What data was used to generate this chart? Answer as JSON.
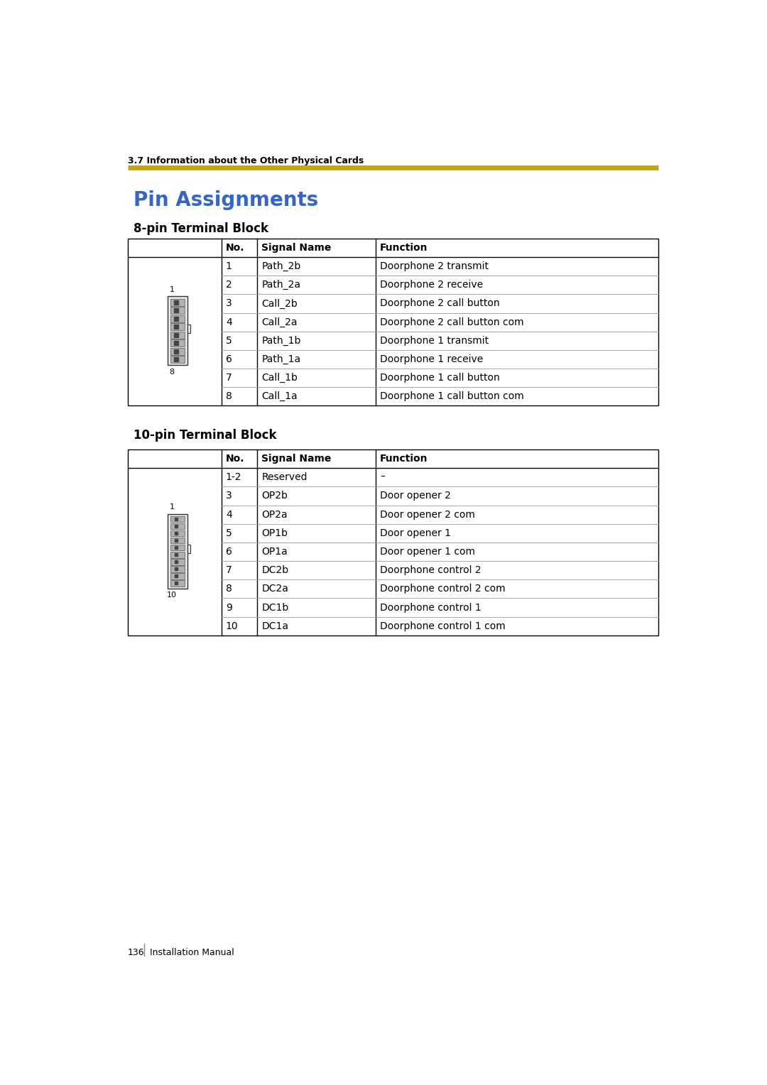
{
  "page_header": "3.7 Information about the Other Physical Cards",
  "title": "Pin Assignments",
  "title_color": "#3366CC",
  "header_line_color": "#C8A800",
  "section1_title": "8-pin Terminal Block",
  "section2_title": "10-pin Terminal Block",
  "table1_headers": [
    "No.",
    "Signal Name",
    "Function"
  ],
  "table1_rows": [
    [
      "1",
      "Path_2b",
      "Doorphone 2 transmit"
    ],
    [
      "2",
      "Path_2a",
      "Doorphone 2 receive"
    ],
    [
      "3",
      "Call_2b",
      "Doorphone 2 call button"
    ],
    [
      "4",
      "Call_2a",
      "Doorphone 2 call button com"
    ],
    [
      "5",
      "Path_1b",
      "Doorphone 1 transmit"
    ],
    [
      "6",
      "Path_1a",
      "Doorphone 1 receive"
    ],
    [
      "7",
      "Call_1b",
      "Doorphone 1 call button"
    ],
    [
      "8",
      "Call_1a",
      "Doorphone 1 call button com"
    ]
  ],
  "table2_headers": [
    "No.",
    "Signal Name",
    "Function"
  ],
  "table2_rows": [
    [
      "1-2",
      "Reserved",
      "–"
    ],
    [
      "3",
      "OP2b",
      "Door opener 2"
    ],
    [
      "4",
      "OP2a",
      "Door opener 2 com"
    ],
    [
      "5",
      "OP1b",
      "Door opener 1"
    ],
    [
      "6",
      "OP1a",
      "Door opener 1 com"
    ],
    [
      "7",
      "DC2b",
      "Doorphone control 2"
    ],
    [
      "8",
      "DC2a",
      "Doorphone control 2 com"
    ],
    [
      "9",
      "DC1b",
      "Doorphone control 1"
    ],
    [
      "10",
      "DC1a",
      "Doorphone control 1 com"
    ]
  ],
  "footer_page": "136",
  "footer_label": "Installation Manual",
  "footer_line_color": "#888888",
  "bg_color": "#FFFFFF",
  "text_color": "#000000",
  "table_border_color": "#000000",
  "table_line_color": "#999999"
}
